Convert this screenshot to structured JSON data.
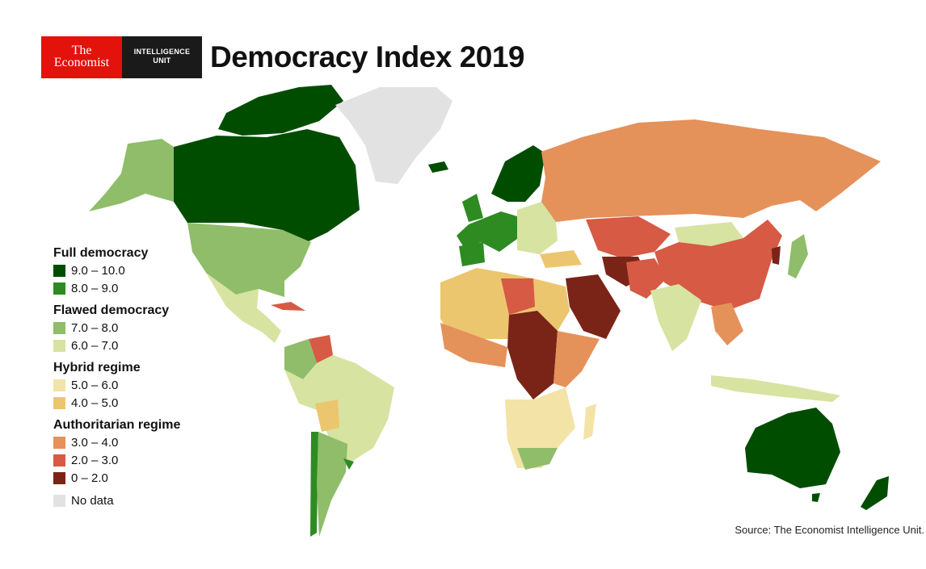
{
  "header": {
    "logo_line1": "The",
    "logo_line2": "Economist",
    "unit_line1": "INTELLIGENCE",
    "unit_line2": "UNIT",
    "title": "Democracy Index 2019"
  },
  "legend": [
    {
      "heading": "Full democracy",
      "items": [
        {
          "label": "9.0 – 10.0",
          "color": "#004d00"
        },
        {
          "label": "8.0 – 9.0",
          "color": "#2e8b22"
        }
      ]
    },
    {
      "heading": "Flawed democracy",
      "items": [
        {
          "label": "7.0 – 8.0",
          "color": "#8fbd6a"
        },
        {
          "label": "6.0 – 7.0",
          "color": "#d7e3a0"
        }
      ]
    },
    {
      "heading": "Hybrid regime",
      "items": [
        {
          "label": "5.0 – 6.0",
          "color": "#f3e3a6"
        },
        {
          "label": "4.0 – 5.0",
          "color": "#ecc66e"
        }
      ]
    },
    {
      "heading": "Authoritarian regime",
      "items": [
        {
          "label": "3.0 – 4.0",
          "color": "#e5915a"
        },
        {
          "label": "2.0 – 3.0",
          "color": "#d65a44"
        },
        {
          "label": "0 – 2.0",
          "color": "#7a2418"
        }
      ]
    },
    {
      "heading": "",
      "items": [
        {
          "label": "No data",
          "color": "#e2e2e2"
        }
      ]
    }
  ],
  "source": "Source: The Economist Intelligence Unit."
}
